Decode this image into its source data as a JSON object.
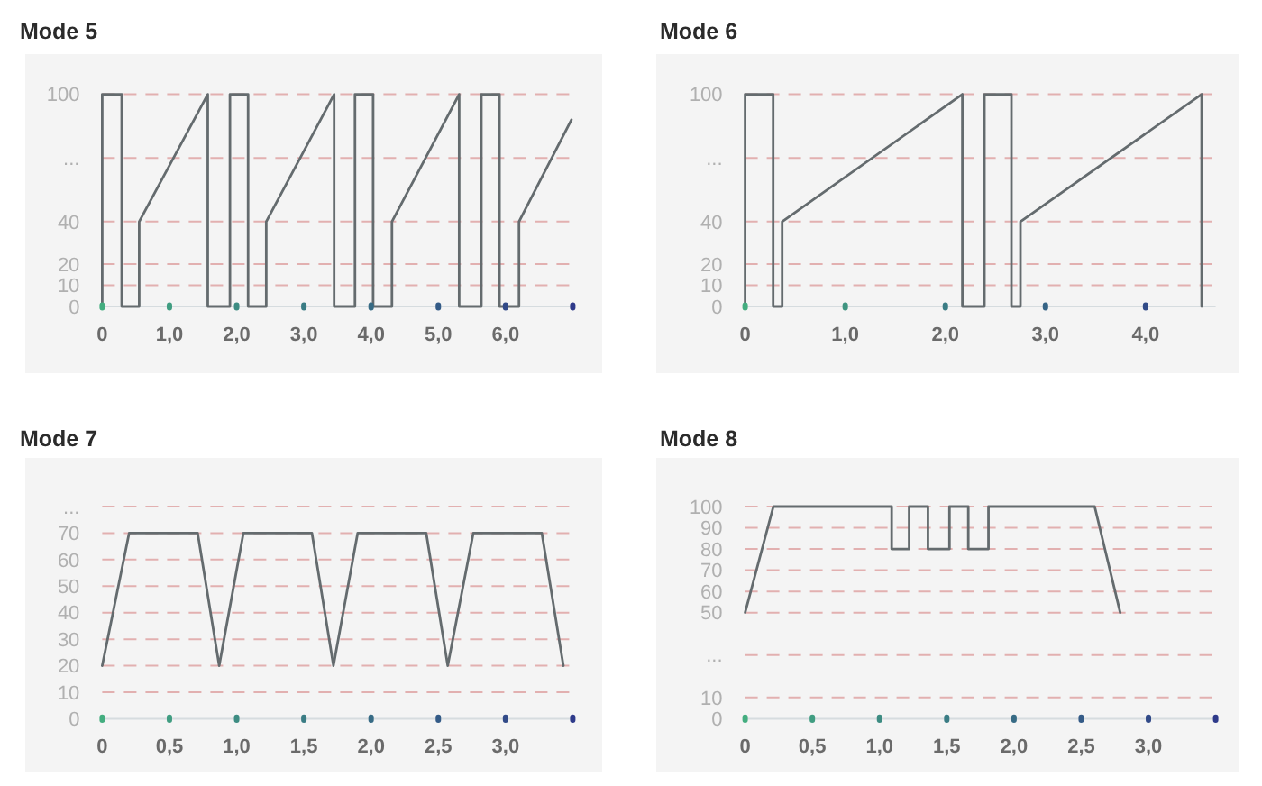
{
  "chart_data": [
    {
      "type": "line",
      "title": "Mode 5",
      "series": [
        {
          "color": "#646b6e",
          "x": [
            0,
            0,
            0.29,
            0.29,
            0.55,
            0.55,
            1.57,
            1.57,
            1.9,
            1.9,
            2.17,
            2.17,
            2.44,
            2.44,
            3.45,
            3.45,
            3.76,
            3.76,
            4.03,
            4.03,
            4.31,
            4.31,
            5.31,
            5.31,
            5.64,
            5.64,
            5.91,
            5.91,
            6.2,
            6.2,
            6.98
          ],
          "values": [
            0,
            100,
            100,
            0,
            0,
            40,
            100,
            0,
            0,
            100,
            100,
            0,
            0,
            40,
            100,
            0,
            0,
            100,
            100,
            0,
            0,
            40,
            100,
            0,
            0,
            100,
            100,
            0,
            0,
            40,
            88
          ]
        }
      ],
      "xlim": [
        0,
        7
      ],
      "xticks": [
        {
          "value": 0,
          "label": "0"
        },
        {
          "value": 1,
          "label": "1,0"
        },
        {
          "value": 2,
          "label": "2,0"
        },
        {
          "value": 3,
          "label": "3,0"
        },
        {
          "value": 4,
          "label": "4,0"
        },
        {
          "value": 5,
          "label": "5,0"
        },
        {
          "value": 6,
          "label": "6,0"
        },
        {
          "value": 7,
          "label": null
        }
      ],
      "ylim": [
        0,
        100
      ],
      "yticks": [
        0,
        10,
        20,
        40,
        {
          "value": 70,
          "label": "..."
        },
        100
      ],
      "grid": "y"
    },
    {
      "type": "line",
      "title": "Mode 6",
      "series": [
        {
          "color": "#646b6e",
          "x": [
            0,
            0,
            0.28,
            0.28,
            0.37,
            0.37,
            2.17,
            2.17,
            2.39,
            2.39,
            2.66,
            2.66,
            2.75,
            2.75,
            4.56,
            4.56
          ],
          "values": [
            0,
            100,
            100,
            0,
            0,
            40,
            100,
            0,
            0,
            100,
            100,
            0,
            0,
            40,
            100,
            0
          ]
        }
      ],
      "xlim": [
        0,
        4.7
      ],
      "xticks": [
        {
          "value": 0,
          "label": "0"
        },
        {
          "value": 1,
          "label": "1,0"
        },
        {
          "value": 2,
          "label": "2,0"
        },
        {
          "value": 3,
          "label": "3,0"
        },
        {
          "value": 4,
          "label": "4,0"
        }
      ],
      "ylim": [
        0,
        100
      ],
      "yticks": [
        0,
        10,
        20,
        40,
        {
          "value": 70,
          "label": "..."
        },
        100
      ],
      "grid": "y"
    },
    {
      "type": "line",
      "title": "Mode 7",
      "series": [
        {
          "color": "#646b6e",
          "x": [
            0,
            0.2,
            0.71,
            0.87,
            1.05,
            1.56,
            1.72,
            1.9,
            2.41,
            2.57,
            2.76,
            3.27,
            3.43
          ],
          "values": [
            20,
            70,
            70,
            20,
            70,
            70,
            20,
            70,
            70,
            20,
            70,
            70,
            20
          ]
        }
      ],
      "xlim": [
        0,
        3.5
      ],
      "xticks": [
        {
          "value": 0,
          "label": "0"
        },
        {
          "value": 0.5,
          "label": "0,5"
        },
        {
          "value": 1,
          "label": "1,0"
        },
        {
          "value": 1.5,
          "label": "1,5"
        },
        {
          "value": 2,
          "label": "2,0"
        },
        {
          "value": 2.5,
          "label": "2,5"
        },
        {
          "value": 3,
          "label": "3,0"
        },
        {
          "value": 3.5,
          "label": null
        }
      ],
      "ylim": [
        0,
        80
      ],
      "yticks": [
        0,
        10,
        20,
        30,
        40,
        50,
        60,
        70,
        {
          "value": 80,
          "label": "..."
        }
      ],
      "grid": "y"
    },
    {
      "type": "line",
      "title": "Mode 8",
      "series": [
        {
          "color": "#646b6e",
          "x": [
            0,
            0.21,
            1.09,
            1.09,
            1.22,
            1.22,
            1.36,
            1.36,
            1.52,
            1.52,
            1.66,
            1.66,
            1.81,
            1.81,
            2.6,
            2.79
          ],
          "values": [
            50,
            100,
            100,
            80,
            80,
            100,
            100,
            80,
            80,
            100,
            100,
            80,
            80,
            100,
            100,
            50
          ]
        }
      ],
      "xlim": [
        0,
        3.5
      ],
      "xticks": [
        {
          "value": 0,
          "label": "0"
        },
        {
          "value": 0.5,
          "label": "0,5"
        },
        {
          "value": 1,
          "label": "1,0"
        },
        {
          "value": 1.5,
          "label": "1,5"
        },
        {
          "value": 2,
          "label": "2,0"
        },
        {
          "value": 2.5,
          "label": "2,5"
        },
        {
          "value": 3,
          "label": "3,0"
        },
        {
          "value": 3.5,
          "label": null
        }
      ],
      "ylim": [
        0,
        100
      ],
      "yticks": [
        0,
        10,
        {
          "value": 30,
          "label": "..."
        },
        50,
        60,
        70,
        80,
        90,
        100
      ],
      "grid": "y"
    }
  ]
}
